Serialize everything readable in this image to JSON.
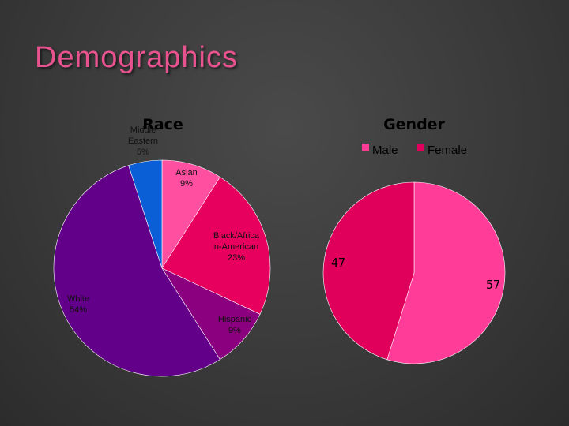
{
  "slide": {
    "title": "Demographics"
  },
  "chart_data": [
    {
      "type": "pie",
      "title": "Race",
      "categories": [
        "Asian",
        "Black/African-American",
        "Hispanic",
        "White",
        "Middle Eastern"
      ],
      "values": [
        9,
        23,
        9,
        54,
        5
      ],
      "label_lines": [
        [
          "Asian",
          "9%"
        ],
        [
          "Black/Africa",
          "n-American",
          "23%"
        ],
        [
          "Hispanic",
          "9%"
        ],
        [
          "White",
          "54%"
        ],
        [
          "Middle",
          "Eastern",
          "5%"
        ]
      ],
      "colors": [
        "#ff4fa1",
        "#e8005e",
        "#8a007e",
        "#63008a",
        "#0a5fd6"
      ],
      "legend": "none"
    },
    {
      "type": "pie",
      "title": "Gender",
      "categories": [
        "Male",
        "Female"
      ],
      "values": [
        57,
        47
      ],
      "data_labels": [
        "57",
        "47"
      ],
      "colors": [
        "#ff3c97",
        "#e0005c"
      ],
      "legend": "top"
    }
  ]
}
